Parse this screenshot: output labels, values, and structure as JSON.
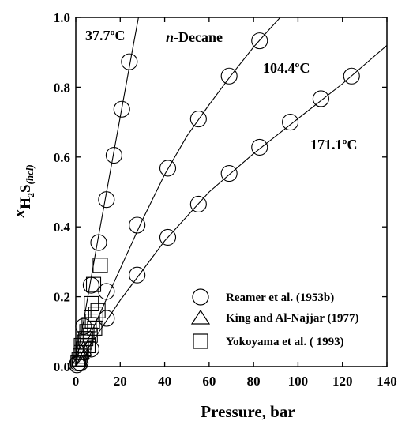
{
  "chart_data": {
    "type": "scatter",
    "title": "",
    "xlabel": "Pressure, bar",
    "ylabel": {
      "var": "x",
      "species": "H",
      "sub": "2",
      "tail": "S",
      "phase": "(hcl)"
    },
    "xlim": [
      0,
      140
    ],
    "ylim": [
      0,
      1.0
    ],
    "x_ticks": [
      0,
      20,
      40,
      60,
      80,
      100,
      120,
      140
    ],
    "y_ticks": [
      0.0,
      0.2,
      0.4,
      0.6,
      0.8,
      1.0
    ],
    "x_tick_labels": [
      "0",
      "20",
      "40",
      "60",
      "80",
      "100",
      "120",
      "140"
    ],
    "y_tick_labels": [
      "0.0",
      "0.2",
      "0.4",
      "0.6",
      "0.8",
      "1.0"
    ],
    "grid": false,
    "legend_position": "bottom-right",
    "annotations": [
      {
        "text": "n-Decane",
        "italic_part": "n",
        "rest": "-Decane"
      }
    ],
    "curve_labels": [
      "37.7ºC",
      "104.4ºC",
      "171.1ºC"
    ],
    "series": [
      {
        "name": "Reamer et al. (1953b)",
        "marker": "circle",
        "points": [
          [
            0.5,
            0.005
          ],
          [
            3.5,
            0.115
          ],
          [
            6.9,
            0.233
          ],
          [
            10.3,
            0.355
          ],
          [
            13.8,
            0.478
          ],
          [
            17.2,
            0.605
          ],
          [
            20.7,
            0.737
          ],
          [
            24.1,
            0.873
          ],
          [
            1.0,
            0.01
          ],
          [
            6.9,
            0.05
          ],
          [
            13.8,
            0.138
          ],
          [
            13.8,
            0.215
          ],
          [
            27.6,
            0.405
          ],
          [
            41.4,
            0.568
          ],
          [
            55.2,
            0.709
          ],
          [
            69.0,
            0.832
          ],
          [
            82.7,
            0.933
          ],
          [
            2.0,
            0.01
          ],
          [
            27.6,
            0.262
          ],
          [
            41.4,
            0.37
          ],
          [
            55.2,
            0.465
          ],
          [
            69.0,
            0.553
          ],
          [
            82.7,
            0.628
          ],
          [
            96.5,
            0.7
          ],
          [
            110.3,
            0.767
          ],
          [
            124.1,
            0.832
          ]
        ]
      },
      {
        "name": "King and Al-Najjar (1977)",
        "marker": "triangle",
        "points": [
          [
            1.8,
            0.02
          ],
          [
            2.6,
            0.04
          ],
          [
            3.5,
            0.05
          ]
        ]
      },
      {
        "name": "Yokoyama et al. ( 1993)",
        "marker": "square",
        "points": [
          [
            1.0,
            0.01
          ],
          [
            1.5,
            0.02
          ],
          [
            2.0,
            0.03
          ],
          [
            2.5,
            0.04
          ],
          [
            2.5,
            0.06
          ],
          [
            3.5,
            0.05
          ],
          [
            4.0,
            0.07
          ],
          [
            4.5,
            0.08
          ],
          [
            5.0,
            0.1
          ],
          [
            5.5,
            0.06
          ],
          [
            6.0,
            0.12
          ],
          [
            6.5,
            0.09
          ],
          [
            7.0,
            0.18
          ],
          [
            7.5,
            0.13
          ],
          [
            8.0,
            0.235
          ],
          [
            8.5,
            0.11
          ],
          [
            9.0,
            0.15
          ],
          [
            10.0,
            0.16
          ],
          [
            11.0,
            0.29
          ]
        ]
      }
    ],
    "fit_curves": [
      {
        "label": "37.7ºC",
        "points": [
          [
            0,
            0
          ],
          [
            5,
            0.185
          ],
          [
            10,
            0.365
          ],
          [
            15,
            0.54
          ],
          [
            20,
            0.715
          ],
          [
            25,
            0.89
          ],
          [
            28.2,
            1.0
          ]
        ]
      },
      {
        "label": "104.4ºC",
        "points": [
          [
            0,
            0
          ],
          [
            10,
            0.14
          ],
          [
            20,
            0.28
          ],
          [
            30,
            0.42
          ],
          [
            40,
            0.55
          ],
          [
            50,
            0.66
          ],
          [
            60,
            0.75
          ],
          [
            70,
            0.835
          ],
          [
            80,
            0.915
          ],
          [
            87,
            0.965
          ],
          [
            92,
            1.0
          ]
        ]
      },
      {
        "label": "171.1ºC",
        "points": [
          [
            0,
            0
          ],
          [
            20,
            0.19
          ],
          [
            40,
            0.36
          ],
          [
            60,
            0.5
          ],
          [
            80,
            0.61
          ],
          [
            100,
            0.71
          ],
          [
            120,
            0.81
          ],
          [
            140,
            0.92
          ]
        ]
      }
    ]
  }
}
